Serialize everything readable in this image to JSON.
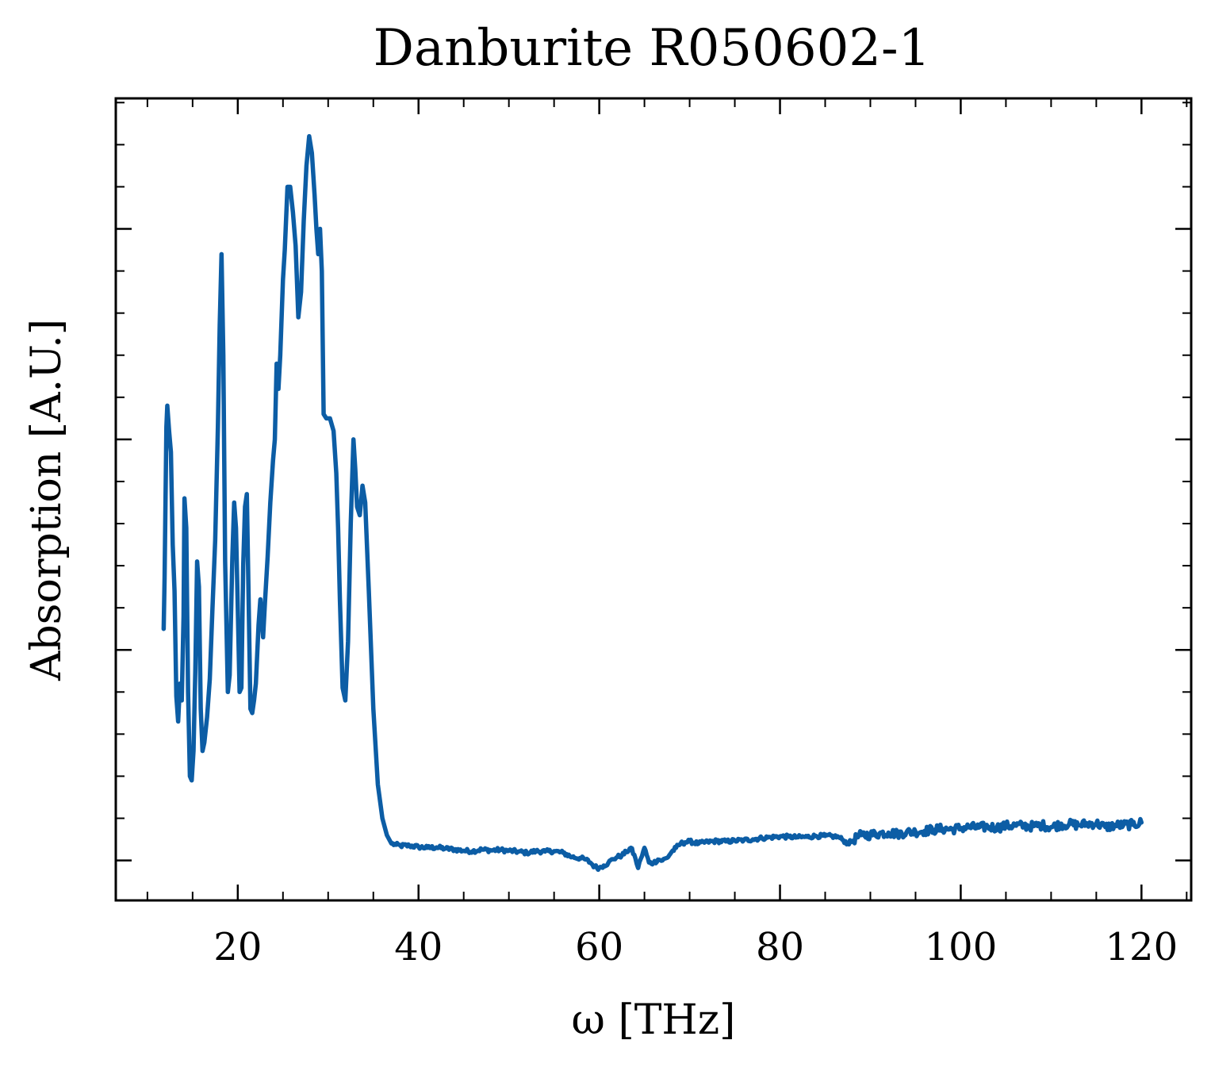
{
  "chart_data": {
    "type": "line",
    "title": "Danburite R050602-1",
    "xlabel": "ω [THz]",
    "ylabel": "Absorption [A.U.]",
    "xlim": [
      6.5,
      125.5
    ],
    "ylim": [
      -0.095,
      1.81
    ],
    "x_ticks": [
      20,
      40,
      60,
      80,
      100,
      120
    ],
    "x_tick_labels": [
      "20",
      "40",
      "60",
      "80",
      "100",
      "120"
    ],
    "y_ticks": [
      0.0,
      0.5,
      1.0,
      1.5
    ],
    "y_tick_labels": [
      "",
      "",
      "",
      ""
    ],
    "x_minor_step": 5,
    "y_minor_step": 0.1,
    "grid": false,
    "line_color": "#0C5DA5",
    "series": [
      {
        "name": "",
        "points": [
          [
            11.8,
            0.55
          ],
          [
            11.9,
            0.67
          ],
          [
            12.1,
            1.03
          ],
          [
            12.2,
            1.08
          ],
          [
            12.4,
            1.02
          ],
          [
            12.6,
            0.97
          ],
          [
            12.8,
            0.75
          ],
          [
            13.0,
            0.64
          ],
          [
            13.2,
            0.39
          ],
          [
            13.4,
            0.33
          ],
          [
            13.6,
            0.42
          ],
          [
            13.8,
            0.38
          ],
          [
            14.0,
            0.58
          ],
          [
            14.1,
            0.86
          ],
          [
            14.3,
            0.79
          ],
          [
            14.5,
            0.4
          ],
          [
            14.7,
            0.2
          ],
          [
            14.9,
            0.19
          ],
          [
            15.1,
            0.26
          ],
          [
            15.3,
            0.45
          ],
          [
            15.5,
            0.71
          ],
          [
            15.7,
            0.65
          ],
          [
            15.9,
            0.36
          ],
          [
            16.1,
            0.26
          ],
          [
            16.3,
            0.28
          ],
          [
            16.6,
            0.34
          ],
          [
            16.9,
            0.43
          ],
          [
            17.2,
            0.6
          ],
          [
            17.5,
            0.76
          ],
          [
            17.8,
            1.03
          ],
          [
            18.0,
            1.27
          ],
          [
            18.2,
            1.44
          ],
          [
            18.4,
            1.2
          ],
          [
            18.6,
            0.71
          ],
          [
            18.9,
            0.4
          ],
          [
            19.1,
            0.44
          ],
          [
            19.4,
            0.72
          ],
          [
            19.6,
            0.85
          ],
          [
            19.8,
            0.79
          ],
          [
            20.0,
            0.6
          ],
          [
            20.2,
            0.4
          ],
          [
            20.4,
            0.41
          ],
          [
            20.6,
            0.7
          ],
          [
            20.8,
            0.84
          ],
          [
            21.0,
            0.87
          ],
          [
            21.2,
            0.62
          ],
          [
            21.4,
            0.36
          ],
          [
            21.6,
            0.35
          ],
          [
            21.8,
            0.38
          ],
          [
            22.0,
            0.42
          ],
          [
            22.3,
            0.56
          ],
          [
            22.5,
            0.62
          ],
          [
            22.8,
            0.53
          ],
          [
            23.0,
            0.61
          ],
          [
            23.3,
            0.72
          ],
          [
            23.6,
            0.85
          ],
          [
            23.9,
            0.95
          ],
          [
            24.1,
            1.0
          ],
          [
            24.3,
            1.18
          ],
          [
            24.5,
            1.12
          ],
          [
            24.7,
            1.2
          ],
          [
            25.0,
            1.38
          ],
          [
            25.2,
            1.45
          ],
          [
            25.5,
            1.6
          ],
          [
            25.8,
            1.6
          ],
          [
            26.1,
            1.54
          ],
          [
            26.4,
            1.46
          ],
          [
            26.7,
            1.29
          ],
          [
            27.0,
            1.35
          ],
          [
            27.3,
            1.52
          ],
          [
            27.6,
            1.65
          ],
          [
            27.9,
            1.72
          ],
          [
            28.2,
            1.68
          ],
          [
            28.5,
            1.58
          ],
          [
            28.7,
            1.5
          ],
          [
            28.9,
            1.44
          ],
          [
            29.1,
            1.5
          ],
          [
            29.3,
            1.4
          ],
          [
            29.5,
            1.06
          ],
          [
            29.8,
            1.05
          ],
          [
            30.2,
            1.05
          ],
          [
            30.6,
            1.02
          ],
          [
            30.9,
            0.92
          ],
          [
            31.1,
            0.79
          ],
          [
            31.3,
            0.62
          ],
          [
            31.6,
            0.41
          ],
          [
            31.9,
            0.38
          ],
          [
            32.2,
            0.52
          ],
          [
            32.5,
            0.8
          ],
          [
            32.8,
            1.0
          ],
          [
            33.0,
            0.93
          ],
          [
            33.2,
            0.84
          ],
          [
            33.5,
            0.82
          ],
          [
            33.8,
            0.89
          ],
          [
            34.1,
            0.85
          ],
          [
            34.5,
            0.64
          ],
          [
            35.0,
            0.36
          ],
          [
            35.5,
            0.18
          ],
          [
            36.0,
            0.1
          ],
          [
            36.5,
            0.06
          ],
          [
            37.0,
            0.04
          ],
          [
            37.5,
            0.037
          ],
          [
            38.0,
            0.035
          ],
          [
            39.0,
            0.035
          ],
          [
            40.0,
            0.032
          ],
          [
            41.0,
            0.03
          ],
          [
            42.0,
            0.031
          ],
          [
            43.0,
            0.028
          ],
          [
            44.0,
            0.026
          ],
          [
            45.0,
            0.023
          ],
          [
            46.0,
            0.022
          ],
          [
            47.0,
            0.026
          ],
          [
            48.0,
            0.024
          ],
          [
            49.0,
            0.025
          ],
          [
            50.0,
            0.023
          ],
          [
            51.0,
            0.021
          ],
          [
            52.0,
            0.018
          ],
          [
            53.0,
            0.022
          ],
          [
            54.0,
            0.021
          ],
          [
            55.0,
            0.022
          ],
          [
            56.0,
            0.018
          ],
          [
            57.0,
            0.008
          ],
          [
            58.0,
            0.005
          ],
          [
            58.5,
            0.002
          ],
          [
            59.0,
            -0.005
          ],
          [
            59.5,
            -0.015
          ],
          [
            60.0,
            -0.018
          ],
          [
            60.5,
            -0.012
          ],
          [
            61.0,
            -0.006
          ],
          [
            61.5,
            0.003
          ],
          [
            62.0,
            0.008
          ],
          [
            62.5,
            0.012
          ],
          [
            63.0,
            0.02
          ],
          [
            63.5,
            0.03
          ],
          [
            64.0,
            0.005
          ],
          [
            64.3,
            -0.018
          ],
          [
            64.6,
            0.004
          ],
          [
            65.0,
            0.03
          ],
          [
            65.5,
            -0.005
          ],
          [
            66.0,
            -0.006
          ],
          [
            66.5,
            0.002
          ],
          [
            67.0,
            0.0
          ],
          [
            67.5,
            0.006
          ],
          [
            68.0,
            0.02
          ],
          [
            68.5,
            0.03
          ],
          [
            69.0,
            0.04
          ],
          [
            69.5,
            0.043
          ],
          [
            70.0,
            0.045
          ],
          [
            71.0,
            0.04
          ],
          [
            72.0,
            0.044
          ],
          [
            73.0,
            0.046
          ],
          [
            74.0,
            0.045
          ],
          [
            75.0,
            0.047
          ],
          [
            76.0,
            0.048
          ],
          [
            77.0,
            0.05
          ],
          [
            78.0,
            0.053
          ],
          [
            79.0,
            0.055
          ],
          [
            80.0,
            0.057
          ],
          [
            81.0,
            0.056
          ],
          [
            82.0,
            0.055
          ],
          [
            83.0,
            0.056
          ],
          [
            84.0,
            0.058
          ],
          [
            85.0,
            0.058
          ],
          [
            86.0,
            0.057
          ],
          [
            86.5,
            0.055
          ],
          [
            87.0,
            0.048
          ],
          [
            87.5,
            0.04
          ],
          [
            88.0,
            0.046
          ],
          [
            88.5,
            0.055
          ],
          [
            89.0,
            0.06
          ],
          [
            90.0,
            0.061
          ],
          [
            91.0,
            0.064
          ],
          [
            92.0,
            0.066
          ],
          [
            93.0,
            0.063
          ],
          [
            94.0,
            0.067
          ],
          [
            95.0,
            0.068
          ],
          [
            96.0,
            0.07
          ],
          [
            97.0,
            0.073
          ],
          [
            98.0,
            0.075
          ],
          [
            99.0,
            0.074
          ],
          [
            100.0,
            0.077
          ],
          [
            101.0,
            0.079
          ],
          [
            102.0,
            0.078
          ],
          [
            103.0,
            0.08
          ],
          [
            104.0,
            0.078
          ],
          [
            105.0,
            0.082
          ],
          [
            106.0,
            0.083
          ],
          [
            107.0,
            0.082
          ],
          [
            108.0,
            0.081
          ],
          [
            109.0,
            0.084
          ],
          [
            110.0,
            0.079
          ],
          [
            111.0,
            0.085
          ],
          [
            112.0,
            0.086
          ],
          [
            113.0,
            0.084
          ],
          [
            114.0,
            0.087
          ],
          [
            115.0,
            0.088
          ],
          [
            116.0,
            0.079
          ],
          [
            117.0,
            0.083
          ],
          [
            118.0,
            0.084
          ],
          [
            119.0,
            0.085
          ],
          [
            120.0,
            0.09
          ]
        ],
        "noise_from_x": 37.0,
        "noise_amplitude": 0.005,
        "noise_high_from_x": 88.0,
        "noise_high_amplitude": 0.011
      }
    ]
  }
}
